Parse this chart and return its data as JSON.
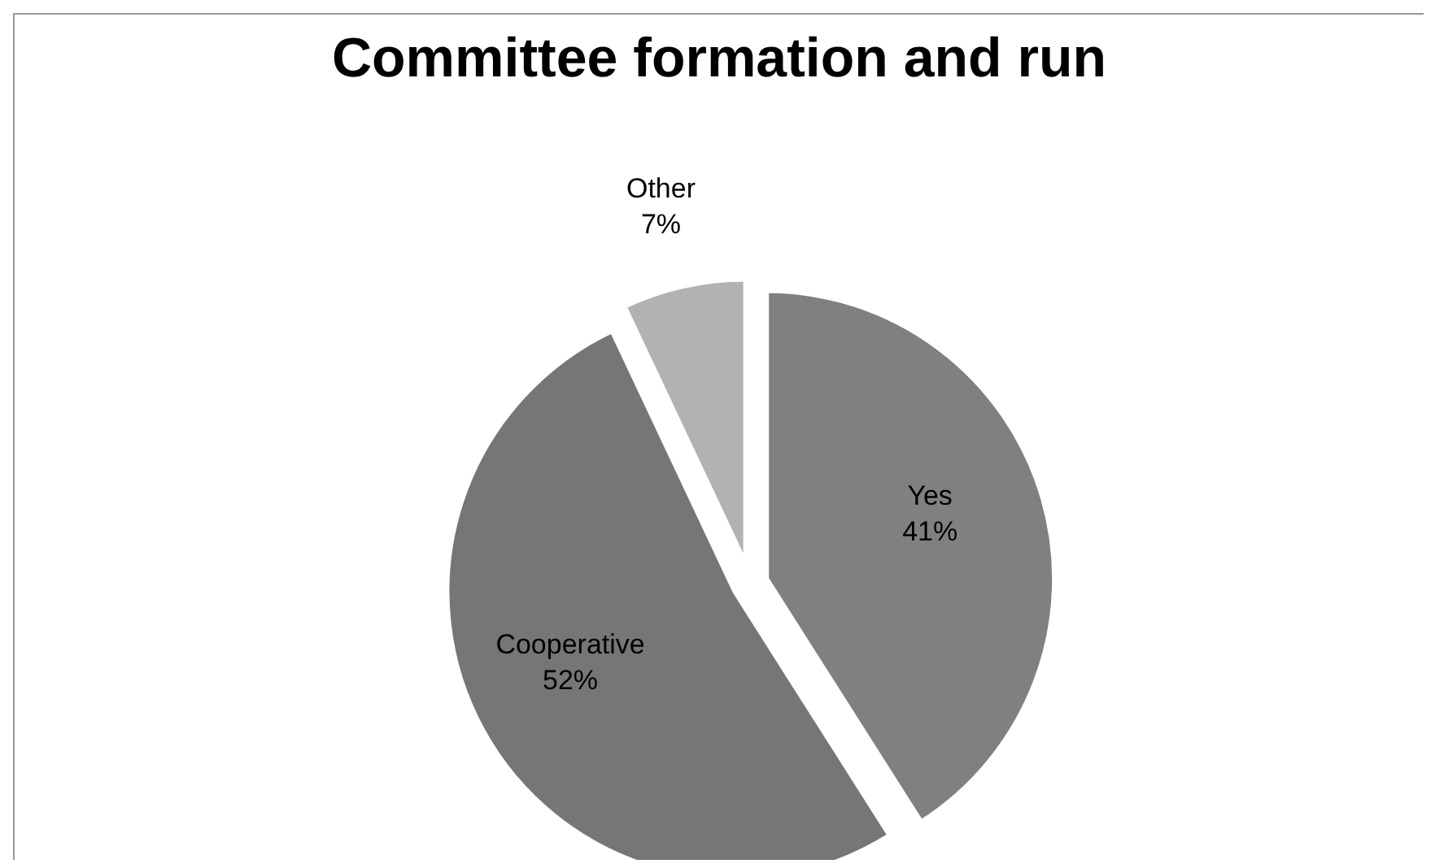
{
  "chart_data": {
    "type": "pie",
    "title": "Committee formation and run",
    "categories": [
      "Yes",
      "Cooperative",
      "Other"
    ],
    "values": [
      41,
      52,
      7
    ],
    "colors": [
      "#808080",
      "#767676",
      "#b2b2b2"
    ],
    "value_labels": [
      "41%",
      "52%",
      "7%"
    ]
  }
}
